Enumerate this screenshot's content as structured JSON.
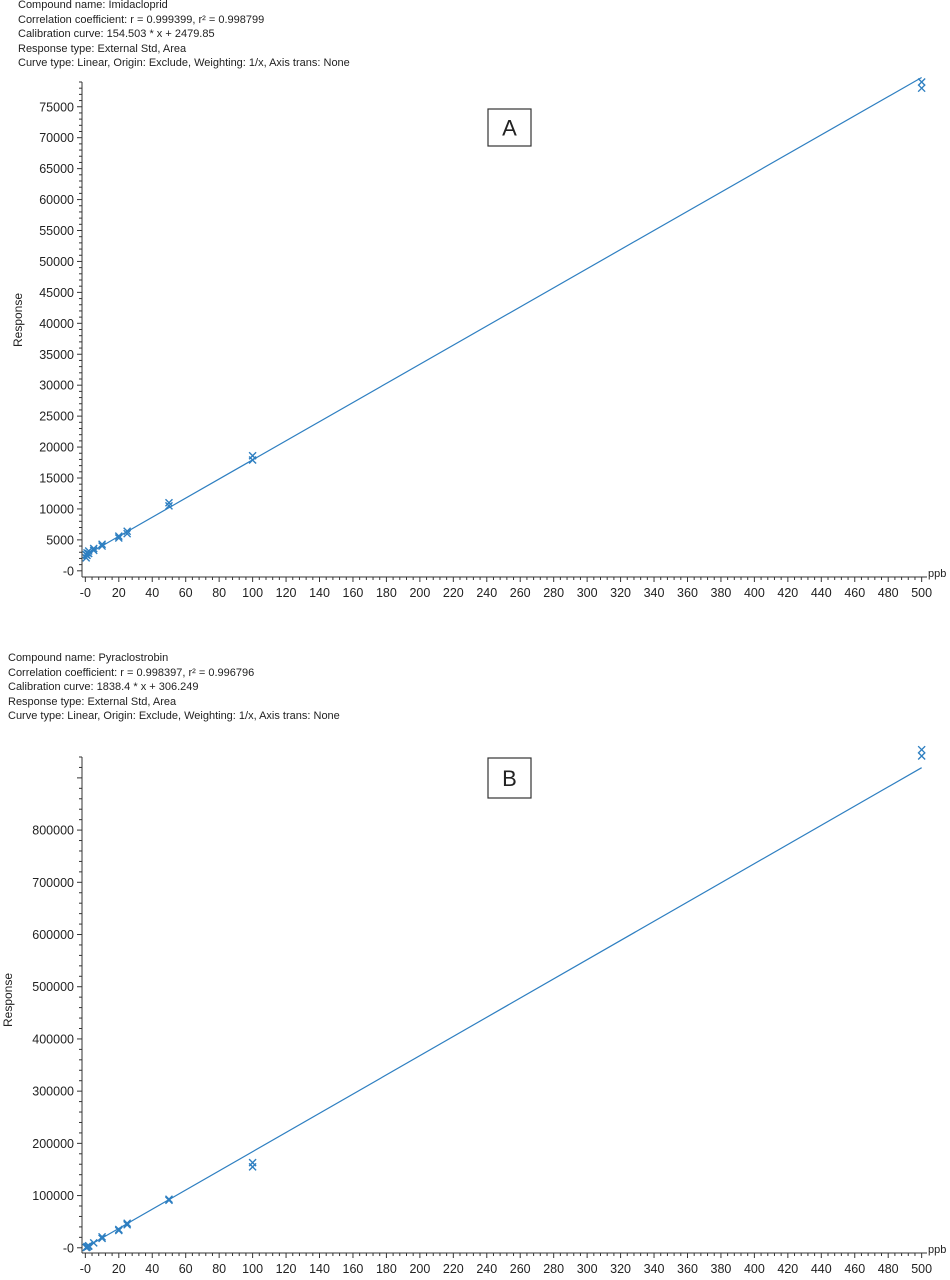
{
  "chart_data": [
    {
      "type": "scatter",
      "panel_label": "A",
      "info_lines": [
        "Compound name: Imidacloprid",
        "Correlation coefficient: r = 0.999399, r² = 0.998799",
        "Calibration curve: 154.503 * x + 2479.85",
        "Response type: External Std, Area",
        "Curve type: Linear, Origin: Exclude, Weighting: 1/x, Axis trans: None"
      ],
      "ylabel": "Response",
      "xlabel": "ppb",
      "xlim": [
        -2,
        502
      ],
      "ylim": [
        -1000,
        79000
      ],
      "x_ticks": [
        0,
        20,
        40,
        60,
        80,
        100,
        120,
        140,
        160,
        180,
        200,
        220,
        240,
        260,
        280,
        300,
        320,
        340,
        360,
        380,
        400,
        420,
        440,
        460,
        480,
        500
      ],
      "x_tick_labels": [
        "-0",
        "20",
        "40",
        "60",
        "80",
        "100",
        "120",
        "140",
        "160",
        "180",
        "200",
        "220",
        "240",
        "260",
        "280",
        "300",
        "320",
        "340",
        "360",
        "380",
        "400",
        "420",
        "440",
        "460",
        "480",
        "500"
      ],
      "y_ticks": [
        0,
        5000,
        10000,
        15000,
        20000,
        25000,
        30000,
        35000,
        40000,
        45000,
        50000,
        55000,
        60000,
        65000,
        70000,
        75000
      ],
      "y_tick_labels": [
        "-0",
        "5000",
        "10000",
        "15000",
        "20000",
        "25000",
        "30000",
        "35000",
        "40000",
        "45000",
        "50000",
        "55000",
        "60000",
        "65000",
        "70000",
        "75000"
      ],
      "fit": {
        "slope": 154.503,
        "intercept": 2479.85,
        "x_range": [
          0,
          500
        ]
      },
      "series": [
        {
          "x": [
            0.5,
            0.5,
            1,
            1,
            2,
            2,
            5,
            5,
            10,
            10,
            20,
            20,
            25,
            25,
            50,
            50,
            100,
            100,
            500,
            500
          ],
          "y": [
            2100,
            2600,
            2500,
            2900,
            2800,
            3200,
            3300,
            3600,
            4000,
            4300,
            5300,
            5600,
            6000,
            6400,
            10500,
            11000,
            17900,
            18600,
            78000,
            79000
          ]
        }
      ],
      "colors": {
        "series": "#2e7fc1",
        "axis": "#333333"
      }
    },
    {
      "type": "scatter",
      "panel_label": "B",
      "info_lines": [
        "Compound name: Pyraclostrobin",
        "Correlation coefficient: r = 0.998397, r² = 0.996796",
        "Calibration curve: 1838.4 * x + 306.249",
        "Response type: External Std, Area",
        "Curve type: Linear, Origin: Exclude, Weighting: 1/x, Axis trans: None"
      ],
      "ylabel": "Response",
      "xlabel": "ppb",
      "xlim": [
        -2,
        502
      ],
      "ylim": [
        -10000,
        940000
      ],
      "x_ticks": [
        0,
        20,
        40,
        60,
        80,
        100,
        120,
        140,
        160,
        180,
        200,
        220,
        240,
        260,
        280,
        300,
        320,
        340,
        360,
        380,
        400,
        420,
        440,
        460,
        480,
        500
      ],
      "x_tick_labels": [
        "-0",
        "20",
        "40",
        "60",
        "80",
        "100",
        "120",
        "140",
        "160",
        "180",
        "200",
        "220",
        "240",
        "260",
        "280",
        "300",
        "320",
        "340",
        "360",
        "380",
        "400",
        "420",
        "440",
        "460",
        "480",
        "500"
      ],
      "y_ticks": [
        0,
        100000,
        200000,
        300000,
        400000,
        500000,
        600000,
        700000,
        800000
      ],
      "y_tick_labels": [
        "-0",
        "100000",
        "200000",
        "300000",
        "400000",
        "500000",
        "600000",
        "700000",
        "800000"
      ],
      "fit": {
        "slope": 1838.4,
        "intercept": 306.249,
        "x_range": [
          0,
          500
        ]
      },
      "series": [
        {
          "x": [
            0.5,
            1,
            1,
            2,
            2,
            5,
            10,
            10,
            20,
            20,
            25,
            25,
            50,
            50,
            100,
            100,
            500,
            500
          ],
          "y": [
            500,
            1000,
            2500,
            3000,
            4000,
            9500,
            18000,
            21000,
            33000,
            35000,
            44000,
            47000,
            91000,
            93000,
            155000,
            163000,
            942000,
            954000
          ]
        }
      ],
      "colors": {
        "series": "#2e7fc1",
        "axis": "#333333"
      }
    }
  ]
}
